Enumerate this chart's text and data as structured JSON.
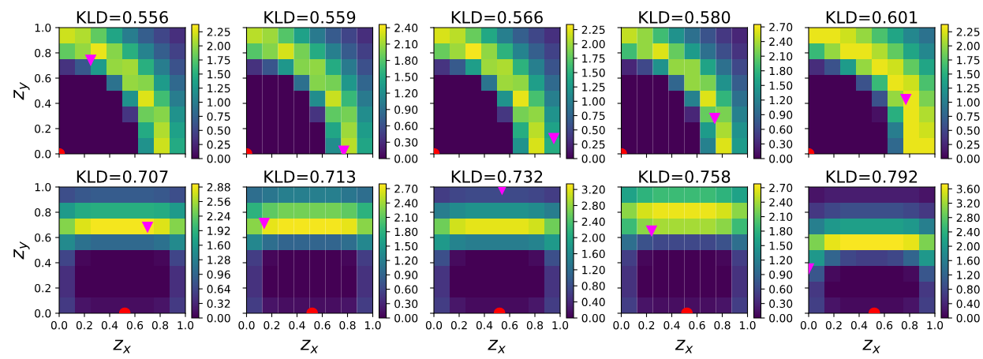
{
  "chart_data": [
    {
      "type": "heatmap",
      "title": "KLD=0.556",
      "ylabel": "z$_{y}$",
      "tick_labels": "y",
      "xlim": [
        0,
        1
      ],
      "ylim": [
        0,
        1
      ],
      "xticks": [
        {
          "value": 0,
          "label": null
        },
        {
          "value": 0.2,
          "label": null
        },
        {
          "value": 0.4,
          "label": null
        },
        {
          "value": 0.6,
          "label": null
        },
        {
          "value": 0.8,
          "label": null
        },
        {
          "value": 1,
          "label": null
        }
      ],
      "yticks": [
        {
          "value": 0,
          "label": "0.0"
        },
        {
          "value": 0.2,
          "label": "0.2"
        },
        {
          "value": 0.4,
          "label": "0.4"
        },
        {
          "value": 0.6,
          "label": "0.6"
        },
        {
          "value": 0.8,
          "label": "0.8"
        },
        {
          "value": 1,
          "label": "1.0"
        }
      ],
      "cells": [
        [
          2.2,
          2.1,
          1.8,
          1.4,
          1.0,
          0.7,
          0.5,
          0.32
        ],
        [
          1.8,
          2.0,
          2.3,
          1.95,
          1.5,
          1.05,
          0.7,
          0.46
        ],
        [
          0.35,
          0.65,
          1.3,
          2.0,
          2.05,
          1.5,
          1.0,
          0.6
        ],
        [
          0,
          0,
          0,
          0.9,
          2.0,
          1.95,
          1.3,
          0.8
        ],
        [
          0,
          0,
          0,
          0,
          1.2,
          2.25,
          1.65,
          1.0
        ],
        [
          0,
          0,
          0,
          0,
          0.37,
          1.85,
          1.95,
          1.2
        ],
        [
          0,
          0,
          0,
          0,
          0,
          1.45,
          2.1,
          1.35
        ],
        [
          0,
          0,
          0,
          0,
          0,
          1.2,
          2.2,
          1.45
        ]
      ],
      "clim": [
        0,
        2.38
      ],
      "cticks": [
        {
          "value": 0,
          "label": "0.00"
        },
        {
          "value": 0.25,
          "label": "0.25"
        },
        {
          "value": 0.5,
          "label": "0.50"
        },
        {
          "value": 0.75,
          "label": "0.75"
        },
        {
          "value": 1,
          "label": "1.00"
        },
        {
          "value": 1.25,
          "label": "1.25"
        },
        {
          "value": 1.5,
          "label": "1.50"
        },
        {
          "value": 1.75,
          "label": "1.75"
        },
        {
          "value": 2,
          "label": "2.00"
        },
        {
          "value": 2.25,
          "label": "2.25"
        }
      ],
      "series": [
        {
          "type": "scatter",
          "marker": "circle",
          "color": "#ff0000",
          "x": [
            0
          ],
          "values": [
            0
          ]
        },
        {
          "type": "scatter",
          "marker": "triangle",
          "color": "#ff00ff",
          "x": [
            0.25
          ],
          "values": [
            0.74
          ]
        }
      ]
    },
    {
      "type": "heatmap",
      "title": "KLD=0.559",
      "tick_labels": false,
      "xlim": [
        0,
        1
      ],
      "ylim": [
        0,
        1
      ],
      "xticks": [
        {
          "value": 0,
          "label": null
        },
        {
          "value": 0.2,
          "label": null
        },
        {
          "value": 0.4,
          "label": null
        },
        {
          "value": 0.6,
          "label": null
        },
        {
          "value": 0.8,
          "label": null
        },
        {
          "value": 1,
          "label": null
        }
      ],
      "yticks": [
        {
          "value": 0,
          "label": null
        },
        {
          "value": 0.2,
          "label": null
        },
        {
          "value": 0.4,
          "label": null
        },
        {
          "value": 0.6,
          "label": null
        },
        {
          "value": 0.8,
          "label": null
        },
        {
          "value": 1,
          "label": null
        }
      ],
      "cells": [
        [
          2.2,
          2.1,
          1.8,
          1.4,
          1.0,
          0.7,
          0.5,
          0.32
        ],
        [
          1.8,
          2.0,
          2.3,
          1.95,
          1.5,
          1.05,
          0.7,
          0.46
        ],
        [
          0.35,
          0.65,
          1.3,
          2.0,
          2.05,
          1.5,
          1.0,
          0.6
        ],
        [
          0,
          0,
          0,
          0.9,
          2.0,
          1.95,
          1.3,
          0.8
        ],
        [
          0,
          0,
          0,
          0,
          1.2,
          2.25,
          1.65,
          1.0
        ],
        [
          0,
          0,
          0,
          0,
          0.37,
          1.85,
          1.95,
          1.2
        ],
        [
          0,
          0,
          0,
          0,
          0,
          1.45,
          2.1,
          1.35
        ],
        [
          0,
          0,
          0,
          0,
          0,
          1.2,
          2.2,
          1.45
        ]
      ],
      "clim": [
        0,
        2.46
      ],
      "cticks": [
        {
          "value": 0,
          "label": "0.00"
        },
        {
          "value": 0.3,
          "label": "0.30"
        },
        {
          "value": 0.6,
          "label": "0.60"
        },
        {
          "value": 0.9,
          "label": "0.90"
        },
        {
          "value": 1.2,
          "label": "1.20"
        },
        {
          "value": 1.5,
          "label": "1.50"
        },
        {
          "value": 1.8,
          "label": "1.80"
        },
        {
          "value": 2.1,
          "label": "2.10"
        },
        {
          "value": 2.4,
          "label": "2.40"
        }
      ],
      "series": [
        {
          "type": "scatter",
          "marker": "circle",
          "color": "#ff0000",
          "x": [
            0
          ],
          "values": [
            0
          ]
        },
        {
          "type": "scatter",
          "marker": "triangle",
          "color": "#ff00ff",
          "x": [
            0.77
          ],
          "values": [
            0.02
          ]
        }
      ]
    },
    {
      "type": "heatmap",
      "title": "KLD=0.566",
      "tick_labels": false,
      "xlim": [
        0,
        1
      ],
      "ylim": [
        0,
        1
      ],
      "xticks": [
        {
          "value": 0,
          "label": null
        },
        {
          "value": 0.2,
          "label": null
        },
        {
          "value": 0.4,
          "label": null
        },
        {
          "value": 0.6,
          "label": null
        },
        {
          "value": 0.8,
          "label": null
        },
        {
          "value": 1,
          "label": null
        }
      ],
      "yticks": [
        {
          "value": 0,
          "label": null
        },
        {
          "value": 0.2,
          "label": null
        },
        {
          "value": 0.4,
          "label": null
        },
        {
          "value": 0.6,
          "label": null
        },
        {
          "value": 0.8,
          "label": null
        },
        {
          "value": 1,
          "label": null
        }
      ],
      "cells": [
        [
          2.2,
          2.1,
          1.8,
          1.4,
          1.0,
          0.7,
          0.5,
          0.32
        ],
        [
          1.8,
          2.0,
          2.3,
          1.95,
          1.5,
          1.05,
          0.7,
          0.46
        ],
        [
          0.35,
          0.65,
          1.3,
          2.0,
          2.05,
          1.5,
          1.0,
          0.6
        ],
        [
          0,
          0,
          0,
          0.9,
          2.0,
          1.95,
          1.3,
          0.8
        ],
        [
          0,
          0,
          0,
          0,
          1.2,
          2.25,
          1.65,
          1.0
        ],
        [
          0,
          0,
          0,
          0,
          0.37,
          1.85,
          1.95,
          1.2
        ],
        [
          0,
          0,
          0,
          0,
          0,
          1.45,
          2.1,
          1.35
        ],
        [
          0,
          0,
          0,
          0,
          0,
          1.2,
          2.2,
          1.45
        ]
      ],
      "clim": [
        0,
        2.34
      ],
      "cticks": [
        {
          "value": 0,
          "label": "0.00"
        },
        {
          "value": 0.25,
          "label": "0.25"
        },
        {
          "value": 0.5,
          "label": "0.50"
        },
        {
          "value": 0.75,
          "label": "0.75"
        },
        {
          "value": 1,
          "label": "1.00"
        },
        {
          "value": 1.25,
          "label": "1.25"
        },
        {
          "value": 1.5,
          "label": "1.50"
        },
        {
          "value": 1.75,
          "label": "1.75"
        },
        {
          "value": 2,
          "label": "2.00"
        },
        {
          "value": 2.25,
          "label": "2.25"
        }
      ],
      "series": [
        {
          "type": "scatter",
          "marker": "circle",
          "color": "#ff0000",
          "x": [
            0
          ],
          "values": [
            0
          ]
        },
        {
          "type": "scatter",
          "marker": "triangle",
          "color": "#ff00ff",
          "x": [
            0.95
          ],
          "values": [
            0.12
          ]
        }
      ]
    },
    {
      "type": "heatmap",
      "title": "KLD=0.580",
      "tick_labels": false,
      "xlim": [
        0,
        1
      ],
      "ylim": [
        0,
        1
      ],
      "xticks": [
        {
          "value": 0,
          "label": null
        },
        {
          "value": 0.2,
          "label": null
        },
        {
          "value": 0.4,
          "label": null
        },
        {
          "value": 0.6,
          "label": null
        },
        {
          "value": 0.8,
          "label": null
        },
        {
          "value": 1,
          "label": null
        }
      ],
      "yticks": [
        {
          "value": 0,
          "label": null
        },
        {
          "value": 0.2,
          "label": null
        },
        {
          "value": 0.4,
          "label": null
        },
        {
          "value": 0.6,
          "label": null
        },
        {
          "value": 0.8,
          "label": null
        },
        {
          "value": 1,
          "label": null
        }
      ],
      "cells": [
        [
          2.5,
          2.3,
          1.9,
          1.4,
          1.0,
          0.7,
          0.45,
          0.3
        ],
        [
          1.9,
          2.3,
          2.6,
          2.1,
          1.5,
          1.0,
          0.65,
          0.4
        ],
        [
          0.3,
          0.6,
          1.4,
          2.3,
          2.3,
          1.6,
          1.0,
          0.6
        ],
        [
          0,
          0,
          0,
          0.9,
          2.3,
          2.2,
          1.4,
          0.8
        ],
        [
          0,
          0,
          0,
          0,
          1.2,
          2.6,
          1.8,
          1.0
        ],
        [
          0,
          0,
          0,
          0,
          0.3,
          2.1,
          2.2,
          1.2
        ],
        [
          0,
          0,
          0,
          0,
          0,
          1.5,
          2.4,
          1.4
        ],
        [
          0,
          0,
          0,
          0,
          0,
          1.2,
          2.6,
          1.5
        ]
      ],
      "clim": [
        0,
        2.75
      ],
      "cticks": [
        {
          "value": 0,
          "label": "0.00"
        },
        {
          "value": 0.3,
          "label": "0.30"
        },
        {
          "value": 0.6,
          "label": "0.60"
        },
        {
          "value": 0.9,
          "label": "0.90"
        },
        {
          "value": 1.2,
          "label": "1.20"
        },
        {
          "value": 1.5,
          "label": "1.50"
        },
        {
          "value": 1.8,
          "label": "1.80"
        },
        {
          "value": 2.1,
          "label": "2.10"
        },
        {
          "value": 2.4,
          "label": "2.40"
        },
        {
          "value": 2.7,
          "label": "2.70"
        }
      ],
      "series": [
        {
          "type": "scatter",
          "marker": "circle",
          "color": "#ff0000",
          "x": [
            0
          ],
          "values": [
            0
          ]
        },
        {
          "type": "scatter",
          "marker": "triangle",
          "color": "#ff00ff",
          "x": [
            0.74
          ],
          "values": [
            0.28
          ]
        }
      ]
    },
    {
      "type": "heatmap",
      "title": "KLD=0.601",
      "tick_labels": false,
      "xlim": [
        0,
        1
      ],
      "ylim": [
        0,
        1
      ],
      "xticks": [
        {
          "value": 0,
          "label": null
        },
        {
          "value": 0.2,
          "label": null
        },
        {
          "value": 0.4,
          "label": null
        },
        {
          "value": 0.6,
          "label": null
        },
        {
          "value": 0.8,
          "label": null
        },
        {
          "value": 1,
          "label": null
        }
      ],
      "yticks": [
        {
          "value": 0,
          "label": null
        },
        {
          "value": 0.2,
          "label": null
        },
        {
          "value": 0.4,
          "label": null
        },
        {
          "value": 0.6,
          "label": null
        },
        {
          "value": 0.8,
          "label": null
        },
        {
          "value": 1,
          "label": null
        }
      ],
      "cells": [
        [
          2.3,
          2.3,
          2.2,
          2.0,
          1.7,
          1.4,
          1.1,
          0.9
        ],
        [
          1.6,
          2.0,
          2.3,
          2.3,
          2.1,
          1.8,
          1.4,
          1.1
        ],
        [
          0.3,
          0.6,
          1.3,
          2.0,
          2.3,
          2.2,
          1.8,
          1.4
        ],
        [
          0,
          0,
          0,
          0.6,
          1.6,
          2.3,
          2.2,
          1.7
        ],
        [
          0,
          0,
          0,
          0,
          0.6,
          2.0,
          2.3,
          1.9
        ],
        [
          0,
          0,
          0,
          0,
          0.1,
          1.5,
          2.3,
          2.1
        ],
        [
          0,
          0,
          0,
          0,
          0,
          1.0,
          2.3,
          2.2
        ],
        [
          0,
          0,
          0,
          0,
          0,
          0.8,
          2.3,
          2.3
        ]
      ],
      "clim": [
        0,
        2.38
      ],
      "cticks": [
        {
          "value": 0,
          "label": "0.00"
        },
        {
          "value": 0.25,
          "label": "0.25"
        },
        {
          "value": 0.5,
          "label": "0.50"
        },
        {
          "value": 0.75,
          "label": "0.75"
        },
        {
          "value": 1,
          "label": "1.00"
        },
        {
          "value": 1.25,
          "label": "1.25"
        },
        {
          "value": 1.5,
          "label": "1.50"
        },
        {
          "value": 1.75,
          "label": "1.75"
        },
        {
          "value": 2,
          "label": "2.00"
        },
        {
          "value": 2.25,
          "label": "2.25"
        }
      ],
      "series": [
        {
          "type": "scatter",
          "marker": "circle",
          "color": "#ff0000",
          "x": [
            0
          ],
          "values": [
            0
          ]
        },
        {
          "type": "scatter",
          "marker": "triangle",
          "color": "#ff00ff",
          "x": [
            0.77
          ],
          "values": [
            0.43
          ]
        }
      ]
    },
    {
      "type": "heatmap",
      "title": "KLD=0.707",
      "ylabel": "z$_{y}$",
      "xlabel": "z$_{x}$",
      "xlim": [
        0,
        1
      ],
      "ylim": [
        0,
        1
      ],
      "xticks": [
        {
          "value": 0,
          "label": "0.0"
        },
        {
          "value": 0.2,
          "label": "0.2"
        },
        {
          "value": 0.4,
          "label": "0.4"
        },
        {
          "value": 0.6,
          "label": "0.6"
        },
        {
          "value": 0.8,
          "label": "0.8"
        },
        {
          "value": 1,
          "label": "1.0"
        }
      ],
      "yticks": [
        {
          "value": 0,
          "label": "0.0"
        },
        {
          "value": 0.2,
          "label": "0.2"
        },
        {
          "value": 0.4,
          "label": "0.4"
        },
        {
          "value": 0.6,
          "label": "0.6"
        },
        {
          "value": 0.8,
          "label": "0.8"
        },
        {
          "value": 1,
          "label": "1.0"
        }
      ],
      "cells": [
        [
          0.7,
          0.8,
          0.85,
          0.85,
          0.85,
          0.85,
          0.8,
          0.7
        ],
        [
          1.6,
          1.8,
          1.85,
          1.85,
          1.85,
          1.85,
          1.8,
          1.6
        ],
        [
          2.4,
          2.8,
          2.9,
          2.9,
          2.9,
          2.9,
          2.8,
          2.4
        ],
        [
          1.4,
          1.1,
          1.0,
          1.0,
          1.0,
          1.0,
          1.1,
          1.4
        ],
        [
          0.6,
          0.05,
          0,
          0,
          0,
          0,
          0.05,
          0.6
        ],
        [
          0.4,
          0,
          0,
          0,
          0,
          0,
          0,
          0.4
        ],
        [
          0.4,
          0,
          0,
          0,
          0,
          0,
          0,
          0.4
        ],
        [
          0.5,
          0.15,
          0.1,
          0.1,
          0.1,
          0.1,
          0.15,
          0.5
        ]
      ],
      "clim": [
        0,
        2.95
      ],
      "cticks": [
        {
          "value": 0,
          "label": "0.00"
        },
        {
          "value": 0.32,
          "label": "0.32"
        },
        {
          "value": 0.64,
          "label": "0.64"
        },
        {
          "value": 0.96,
          "label": "0.96"
        },
        {
          "value": 1.28,
          "label": "1.28"
        },
        {
          "value": 1.6,
          "label": "1.60"
        },
        {
          "value": 1.92,
          "label": "1.92"
        },
        {
          "value": 2.24,
          "label": "2.24"
        },
        {
          "value": 2.56,
          "label": "2.56"
        },
        {
          "value": 2.88,
          "label": "2.88"
        }
      ],
      "series": [
        {
          "type": "scatter",
          "marker": "circle",
          "color": "#ff0000",
          "x": [
            0.52
          ],
          "values": [
            0
          ]
        },
        {
          "type": "scatter",
          "marker": "triangle",
          "color": "#ff00ff",
          "x": [
            0.7
          ],
          "values": [
            0.68
          ]
        }
      ]
    },
    {
      "type": "heatmap",
      "title": "KLD=0.713",
      "xlabel": "z$_{x}$",
      "tick_labels": "x",
      "xlim": [
        0,
        1
      ],
      "ylim": [
        0,
        1
      ],
      "xticks": [
        {
          "value": 0,
          "label": "0.0"
        },
        {
          "value": 0.2,
          "label": "0.2"
        },
        {
          "value": 0.4,
          "label": "0.4"
        },
        {
          "value": 0.6,
          "label": "0.6"
        },
        {
          "value": 0.8,
          "label": "0.8"
        },
        {
          "value": 1,
          "label": "1.0"
        }
      ],
      "yticks": [
        {
          "value": 0,
          "label": null
        },
        {
          "value": 0.2,
          "label": null
        },
        {
          "value": 0.4,
          "label": null
        },
        {
          "value": 0.6,
          "label": null
        },
        {
          "value": 0.8,
          "label": null
        },
        {
          "value": 1,
          "label": null
        }
      ],
      "cells": [
        [
          1.0,
          1.1,
          1.2,
          1.2,
          1.2,
          1.2,
          1.1,
          1.0
        ],
        [
          1.8,
          2.1,
          2.2,
          2.2,
          2.2,
          2.2,
          2.1,
          1.8
        ],
        [
          2.3,
          2.7,
          2.75,
          2.75,
          2.75,
          2.75,
          2.7,
          2.3
        ],
        [
          1.3,
          1.0,
          0.9,
          0.9,
          0.9,
          0.9,
          1.0,
          1.3
        ],
        [
          0.5,
          0.05,
          0,
          0,
          0,
          0,
          0.05,
          0.5
        ],
        [
          0.4,
          0,
          0,
          0,
          0,
          0,
          0,
          0.4
        ],
        [
          0.4,
          0,
          0,
          0,
          0,
          0,
          0,
          0.4
        ],
        [
          0.5,
          0.15,
          0.1,
          0.1,
          0.1,
          0.1,
          0.15,
          0.5
        ]
      ],
      "clim": [
        0,
        2.8
      ],
      "cticks": [
        {
          "value": 0,
          "label": "0.00"
        },
        {
          "value": 0.3,
          "label": "0.30"
        },
        {
          "value": 0.6,
          "label": "0.60"
        },
        {
          "value": 0.9,
          "label": "0.90"
        },
        {
          "value": 1.2,
          "label": "1.20"
        },
        {
          "value": 1.5,
          "label": "1.50"
        },
        {
          "value": 1.8,
          "label": "1.80"
        },
        {
          "value": 2.1,
          "label": "2.10"
        },
        {
          "value": 2.4,
          "label": "2.40"
        },
        {
          "value": 2.7,
          "label": "2.70"
        }
      ],
      "series": [
        {
          "type": "scatter",
          "marker": "circle",
          "color": "#ff0000",
          "x": [
            0.52
          ],
          "values": [
            0
          ]
        },
        {
          "type": "scatter",
          "marker": "triangle",
          "color": "#ff00ff",
          "x": [
            0.14
          ],
          "values": [
            0.71
          ]
        }
      ]
    },
    {
      "type": "heatmap",
      "title": "KLD=0.732",
      "xlabel": "z$_{x}$",
      "tick_labels": "x",
      "xlim": [
        0,
        1
      ],
      "ylim": [
        0,
        1
      ],
      "xticks": [
        {
          "value": 0,
          "label": "0.0"
        },
        {
          "value": 0.2,
          "label": "0.2"
        },
        {
          "value": 0.4,
          "label": "0.4"
        },
        {
          "value": 0.6,
          "label": "0.6"
        },
        {
          "value": 0.8,
          "label": "0.8"
        },
        {
          "value": 1,
          "label": "1.0"
        }
      ],
      "yticks": [
        {
          "value": 0,
          "label": null
        },
        {
          "value": 0.2,
          "label": null
        },
        {
          "value": 0.4,
          "label": null
        },
        {
          "value": 0.6,
          "label": null
        },
        {
          "value": 0.8,
          "label": null
        },
        {
          "value": 1,
          "label": null
        }
      ],
      "cells": [
        [
          0.6,
          0.7,
          0.75,
          0.75,
          0.75,
          0.75,
          0.7,
          0.6
        ],
        [
          1.4,
          1.6,
          1.7,
          1.7,
          1.7,
          1.7,
          1.6,
          1.4
        ],
        [
          2.6,
          3.1,
          3.2,
          3.2,
          3.2,
          3.2,
          3.1,
          2.6
        ],
        [
          1.8,
          1.5,
          1.4,
          1.4,
          1.4,
          1.4,
          1.5,
          1.8
        ],
        [
          0.8,
          0.1,
          0,
          0,
          0,
          0,
          0.1,
          0.8
        ],
        [
          0.5,
          0,
          0,
          0,
          0,
          0,
          0,
          0.5
        ],
        [
          0.5,
          0,
          0,
          0,
          0,
          0,
          0,
          0.5
        ],
        [
          0.6,
          0.2,
          0.1,
          0.1,
          0.1,
          0.1,
          0.2,
          0.6
        ]
      ],
      "clim": [
        0,
        3.34
      ],
      "cticks": [
        {
          "value": 0,
          "label": "0.00"
        },
        {
          "value": 0.4,
          "label": "0.40"
        },
        {
          "value": 0.8,
          "label": "0.80"
        },
        {
          "value": 1.2,
          "label": "1.20"
        },
        {
          "value": 1.6,
          "label": "1.60"
        },
        {
          "value": 2,
          "label": "2.00"
        },
        {
          "value": 2.4,
          "label": "2.40"
        },
        {
          "value": 2.8,
          "label": "2.80"
        },
        {
          "value": 3.2,
          "label": "3.20"
        }
      ],
      "series": [
        {
          "type": "scatter",
          "marker": "circle",
          "color": "#ff0000",
          "x": [
            0.52
          ],
          "values": [
            0
          ]
        },
        {
          "type": "scatter",
          "marker": "triangle",
          "color": "#ff00ff",
          "x": [
            0.54
          ],
          "values": [
            0.98
          ]
        }
      ]
    },
    {
      "type": "heatmap",
      "title": "KLD=0.758",
      "xlabel": "z$_{x}$",
      "tick_labels": "x",
      "xlim": [
        0,
        1
      ],
      "ylim": [
        0,
        1
      ],
      "xticks": [
        {
          "value": 0,
          "label": "0.0"
        },
        {
          "value": 0.2,
          "label": "0.2"
        },
        {
          "value": 0.4,
          "label": "0.4"
        },
        {
          "value": 0.6,
          "label": "0.6"
        },
        {
          "value": 0.8,
          "label": "0.8"
        },
        {
          "value": 1,
          "label": "1.0"
        }
      ],
      "yticks": [
        {
          "value": 0,
          "label": null
        },
        {
          "value": 0.2,
          "label": null
        },
        {
          "value": 0.4,
          "label": null
        },
        {
          "value": 0.6,
          "label": null
        },
        {
          "value": 0.8,
          "label": null
        },
        {
          "value": 1,
          "label": null
        }
      ],
      "cells": [
        [
          1.6,
          1.8,
          1.9,
          1.9,
          1.9,
          1.9,
          1.8,
          1.6
        ],
        [
          2.3,
          2.6,
          2.7,
          2.7,
          2.7,
          2.7,
          2.6,
          2.3
        ],
        [
          1.9,
          2.3,
          2.4,
          2.4,
          2.4,
          2.4,
          2.3,
          1.9
        ],
        [
          1.0,
          0.7,
          0.6,
          0.6,
          0.6,
          0.6,
          0.7,
          1.0
        ],
        [
          0.5,
          0.05,
          0,
          0,
          0,
          0,
          0.05,
          0.5
        ],
        [
          0.4,
          0,
          0,
          0,
          0,
          0,
          0,
          0.4
        ],
        [
          0.4,
          0,
          0,
          0,
          0,
          0,
          0,
          0.4
        ],
        [
          0.5,
          0.15,
          0.1,
          0.1,
          0.1,
          0.1,
          0.15,
          0.5
        ]
      ],
      "clim": [
        0,
        2.78
      ],
      "cticks": [
        {
          "value": 0,
          "label": "0.00"
        },
        {
          "value": 0.3,
          "label": "0.30"
        },
        {
          "value": 0.6,
          "label": "0.60"
        },
        {
          "value": 0.9,
          "label": "0.90"
        },
        {
          "value": 1.2,
          "label": "1.20"
        },
        {
          "value": 1.5,
          "label": "1.50"
        },
        {
          "value": 1.8,
          "label": "1.80"
        },
        {
          "value": 2.1,
          "label": "2.10"
        },
        {
          "value": 2.4,
          "label": "2.40"
        },
        {
          "value": 2.7,
          "label": "2.70"
        }
      ],
      "series": [
        {
          "type": "scatter",
          "marker": "circle",
          "color": "#ff0000",
          "x": [
            0.52
          ],
          "values": [
            0
          ]
        },
        {
          "type": "scatter",
          "marker": "triangle",
          "color": "#ff00ff",
          "x": [
            0.24
          ],
          "values": [
            0.65
          ]
        }
      ]
    },
    {
      "type": "heatmap",
      "title": "KLD=0.792",
      "xlabel": "z$_{x}$",
      "tick_labels": "x",
      "xlim": [
        0,
        1
      ],
      "ylim": [
        0,
        1
      ],
      "xticks": [
        {
          "value": 0,
          "label": "0.0"
        },
        {
          "value": 0.2,
          "label": "0.2"
        },
        {
          "value": 0.4,
          "label": "0.4"
        },
        {
          "value": 0.6,
          "label": "0.6"
        },
        {
          "value": 0.8,
          "label": "0.8"
        },
        {
          "value": 1,
          "label": "1.0"
        }
      ],
      "yticks": [
        {
          "value": 0,
          "label": null
        },
        {
          "value": 0.2,
          "label": null
        },
        {
          "value": 0.4,
          "label": null
        },
        {
          "value": 0.6,
          "label": null
        },
        {
          "value": 0.8,
          "label": null
        },
        {
          "value": 1,
          "label": null
        }
      ],
      "cells": [
        [
          0.2,
          0.3,
          0.3,
          0.3,
          0.3,
          0.3,
          0.3,
          0.2
        ],
        [
          0.6,
          0.8,
          0.9,
          0.9,
          0.9,
          0.9,
          0.8,
          0.6
        ],
        [
          1.6,
          2.0,
          2.1,
          2.1,
          2.1,
          2.1,
          2.0,
          1.6
        ],
        [
          3.0,
          3.6,
          3.7,
          3.7,
          3.7,
          3.7,
          3.6,
          3.0
        ],
        [
          2.0,
          1.2,
          0.8,
          0.7,
          0.7,
          0.8,
          1.2,
          2.0
        ],
        [
          1.0,
          0.1,
          0,
          0,
          0,
          0,
          0.1,
          1.0
        ],
        [
          0.6,
          0,
          0,
          0,
          0,
          0,
          0,
          0.6
        ],
        [
          0.7,
          0.2,
          0.1,
          0.1,
          0.1,
          0.1,
          0.2,
          0.7
        ]
      ],
      "clim": [
        0,
        3.74
      ],
      "cticks": [
        {
          "value": 0,
          "label": "0.00"
        },
        {
          "value": 0.4,
          "label": "0.40"
        },
        {
          "value": 0.8,
          "label": "0.80"
        },
        {
          "value": 1.2,
          "label": "1.20"
        },
        {
          "value": 1.6,
          "label": "1.60"
        },
        {
          "value": 2,
          "label": "2.00"
        },
        {
          "value": 2.4,
          "label": "2.40"
        },
        {
          "value": 2.8,
          "label": "2.80"
        },
        {
          "value": 3.2,
          "label": "3.20"
        },
        {
          "value": 3.6,
          "label": "3.60"
        }
      ],
      "series": [
        {
          "type": "scatter",
          "marker": "circle",
          "color": "#ff0000",
          "x": [
            0.52
          ],
          "values": [
            0
          ]
        },
        {
          "type": "scatter",
          "marker": "triangle",
          "color": "#ff00ff",
          "x": [
            0.0
          ],
          "values": [
            0.35
          ]
        }
      ]
    }
  ]
}
